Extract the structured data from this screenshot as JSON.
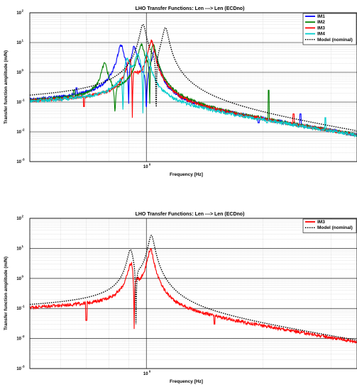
{
  "chart_data": [
    {
      "type": "line",
      "title": "LHO Transfer Functions: Len ---> Len (ECDno)",
      "xlabel": "Frequency [Hz]",
      "ylabel": "Transfer function amplitude (m/N)",
      "xscale": "log",
      "yscale": "log",
      "xlim": [
        0.5,
        3.5
      ],
      "ylim": [
        0.001,
        100
      ],
      "x_ticks": [
        {
          "value": 1,
          "base": "10",
          "exp": "0"
        }
      ],
      "y_ticks": [
        {
          "value": 100,
          "base": "10",
          "exp": "2"
        },
        {
          "value": 10,
          "base": "10",
          "exp": "1"
        },
        {
          "value": 1,
          "base": "10",
          "exp": "0"
        },
        {
          "value": 0.1,
          "base": "10",
          "exp": "-1"
        },
        {
          "value": 0.01,
          "base": "10",
          "exp": "-2"
        },
        {
          "value": 0.001,
          "base": "10",
          "exp": "-3"
        }
      ],
      "grid": true,
      "legend_position": "top-right",
      "series": [
        {
          "name": "IM1",
          "color": "#0000ff",
          "style": "solid",
          "resonances": [
            [
              0.86,
              9
            ],
            [
              0.93,
              8
            ],
            [
              1.05,
              6
            ]
          ],
          "notches": [
            [
              0.9,
              0.08
            ],
            [
              1.0,
              0.05
            ]
          ],
          "spikes": [
            [
              0.66,
              0.3
            ],
            [
              1.95,
              0.02
            ],
            [
              2.5,
              0.04
            ]
          ]
        },
        {
          "name": "IM2",
          "color": "#008000",
          "style": "solid",
          "resonances": [
            [
              0.78,
              2
            ],
            [
              0.97,
              9
            ],
            [
              1.04,
              10
            ]
          ],
          "notches": [
            [
              0.83,
              0.05
            ],
            [
              1.02,
              0.06
            ]
          ],
          "spikes": [
            [
              0.65,
              0.25
            ],
            [
              2.07,
              0.25
            ],
            [
              1.8,
              0.03
            ]
          ]
        },
        {
          "name": "IM3",
          "color": "#ff0000",
          "style": "solid",
          "resonances": [
            [
              0.91,
              4
            ],
            [
              1.03,
              12
            ]
          ],
          "notches": [
            [
              0.92,
              0.03
            ]
          ],
          "spikes": [
            [
              0.69,
              0.07
            ],
            [
              1.6,
              0.04
            ],
            [
              2.4,
              0.04
            ]
          ]
        },
        {
          "name": "IM4",
          "color": "#00cccc",
          "style": "solid",
          "resonances": [
            [
              0.89,
              3
            ],
            [
              0.95,
              4
            ],
            [
              1.0,
              5
            ]
          ],
          "notches": [
            [
              0.87,
              0.05
            ],
            [
              0.98,
              0.03
            ]
          ],
          "spikes": [
            [
              2.05,
              0.02
            ],
            [
              2.9,
              0.03
            ]
          ]
        },
        {
          "name": "Model (nominal)",
          "color": "#000000",
          "style": "dotted",
          "resonances": [
            [
              0.98,
              45
            ],
            [
              1.12,
              35
            ]
          ],
          "notches": [
            [
              1.06,
              0.004
            ]
          ],
          "spikes": []
        }
      ]
    },
    {
      "type": "line",
      "title": "LHO Transfer Functions: Len ---> Len (ECDno)",
      "xlabel": "Frequency [Hz]",
      "ylabel": "Transfer function amplitude (m/N)",
      "xscale": "log",
      "yscale": "log",
      "xlim": [
        0.5,
        3.5
      ],
      "ylim": [
        0.001,
        100
      ],
      "x_ticks": [
        {
          "value": 1,
          "base": "10",
          "exp": "0"
        }
      ],
      "y_ticks": [
        {
          "value": 100,
          "base": "10",
          "exp": "2"
        },
        {
          "value": 10,
          "base": "10",
          "exp": "1"
        },
        {
          "value": 1,
          "base": "10",
          "exp": "0"
        },
        {
          "value": 0.1,
          "base": "10",
          "exp": "-1"
        },
        {
          "value": 0.01,
          "base": "10",
          "exp": "-2"
        },
        {
          "value": 0.001,
          "base": "10",
          "exp": "-3"
        }
      ],
      "grid": true,
      "legend_position": "top-right",
      "series": [
        {
          "name": "IM3",
          "color": "#ff0000",
          "style": "solid",
          "resonances": [
            [
              0.915,
              4
            ],
            [
              1.025,
              10
            ]
          ],
          "notches": [
            [
              0.93,
              0.02
            ]
          ],
          "spikes": [
            [
              0.7,
              0.04
            ],
            [
              1.5,
              0.03
            ]
          ]
        },
        {
          "name": "Model (nominal)",
          "color": "#000000",
          "style": "dotted",
          "resonances": [
            [
              0.91,
              10
            ],
            [
              1.03,
              30
            ]
          ],
          "notches": [
            [
              0.94,
              0.03
            ]
          ],
          "spikes": []
        }
      ]
    }
  ]
}
